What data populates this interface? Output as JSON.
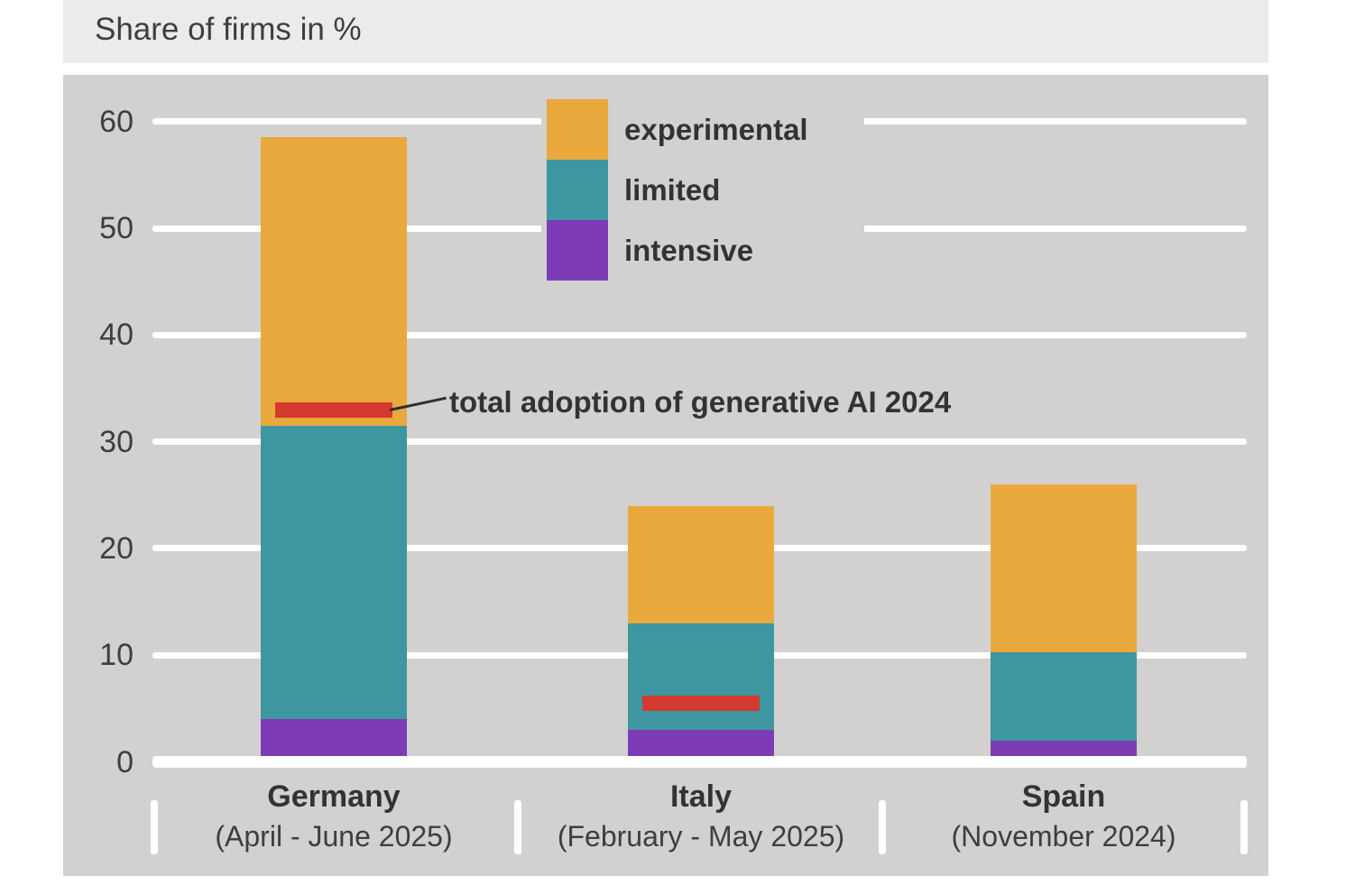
{
  "title": "Share of firms in %",
  "colors": {
    "experimental": "#E9A93C",
    "limited": "#3E96A0",
    "intensive": "#7D3CB5",
    "marker": "#D43A2F",
    "chart_bg": "#D2D1CF",
    "title_bg": "#EBEBE9",
    "grid": "#FFFFFF",
    "text": "#333331"
  },
  "legend": {
    "items": [
      {
        "key": "experimental",
        "label": "experimental"
      },
      {
        "key": "limited",
        "label": "limited"
      },
      {
        "key": "intensive",
        "label": "intensive"
      }
    ]
  },
  "annotation": {
    "text": "total adoption of generative AI 2024"
  },
  "chart_data": {
    "type": "bar",
    "stacked": true,
    "title": "Share of firms in %",
    "xlabel": "",
    "ylabel": "Share of firms in %",
    "ylim": [
      0,
      60
    ],
    "yticks": [
      0,
      10,
      20,
      30,
      40,
      50,
      60
    ],
    "grid": "horizontal-white",
    "legend_position": "top-center-inside",
    "categories": [
      {
        "country": "Germany",
        "period": "(April - June 2025)"
      },
      {
        "country": "Italy",
        "period": "(February - May 2025)"
      },
      {
        "country": "Spain",
        "period": "(November 2024)"
      }
    ],
    "series": [
      {
        "name": "intensive",
        "values": [
          4.0,
          3.0,
          2.0
        ]
      },
      {
        "name": "limited",
        "values": [
          27.5,
          10.0,
          8.3
        ]
      },
      {
        "name": "experimental",
        "values": [
          27.0,
          11.0,
          15.7
        ]
      }
    ],
    "totals_2025": [
      58.5,
      24.0,
      26.0
    ],
    "markers": {
      "name": "total adoption of generative AI 2024",
      "values": [
        33.0,
        5.5,
        null
      ]
    }
  }
}
